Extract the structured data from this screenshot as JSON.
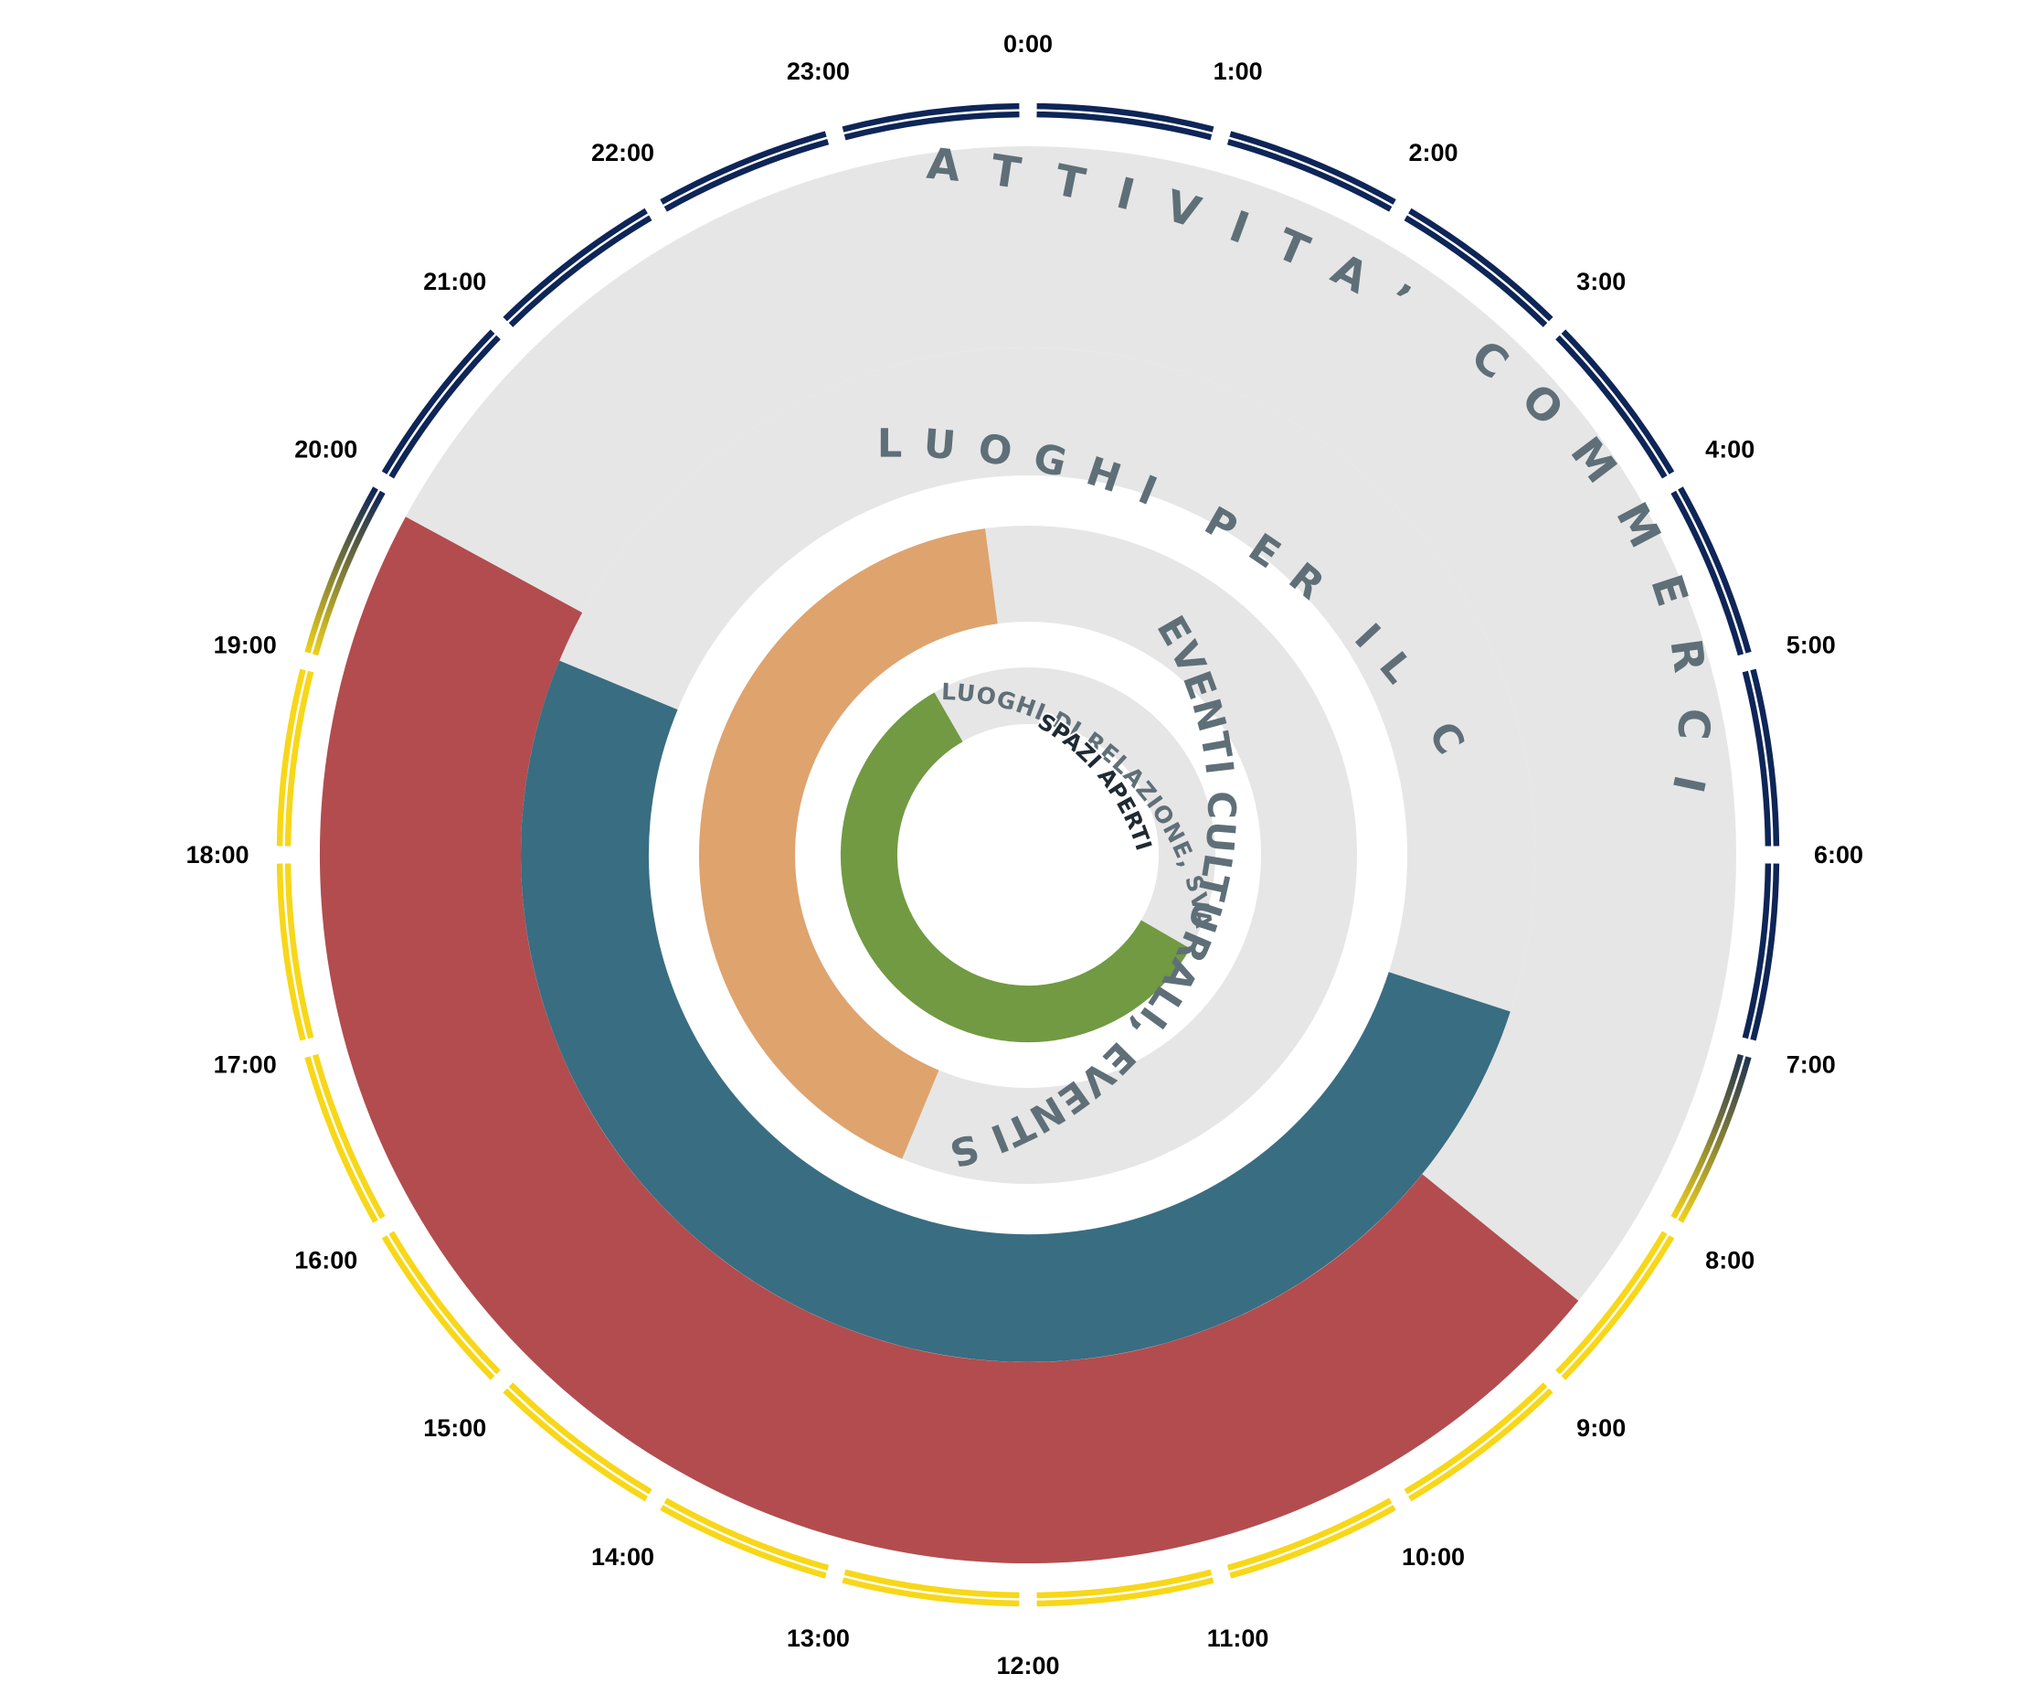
{
  "chart_data": {
    "type": "radial-bar",
    "title": "",
    "clock": {
      "labels": [
        "0:00",
        "1:00",
        "2:00",
        "3:00",
        "4:00",
        "5:00",
        "6:00",
        "7:00",
        "8:00",
        "9:00",
        "10:00",
        "11:00",
        "12:00",
        "13:00",
        "14:00",
        "15:00",
        "16:00",
        "17:00",
        "18:00",
        "19:00",
        "20:00",
        "21:00",
        "22:00",
        "23:00"
      ],
      "night_color": "#0e2557",
      "day_color": "#f7d718",
      "day_period": {
        "start_hour": 7.5,
        "end_hour": 19.5
      }
    },
    "rings": [
      {
        "name": "ATTIVITA’ COMMERCIALI",
        "start_hour": 8.6,
        "end_hour": 19.9,
        "color": "#b34c4e",
        "track_color": "#e6e6e6"
      },
      {
        "name": "LUOGHI PER IL CULTO",
        "start_hour": 7.2,
        "end_hour": 19.5,
        "color": "#396d82",
        "track_color": "#e6e6e6"
      },
      {
        "name": "EVENTI CULTURALI, EVENTI SPORTIVI",
        "start_hour": 13.5,
        "end_hour": 23.5,
        "color": "#dfa36d",
        "track_color": "#e6e6e6"
      },
      {
        "name": "LUOGHI DI RELAZIONE, SVAGO,",
        "start_hour": 8.0,
        "end_hour": 22.0,
        "color": "#719a42",
        "track_color": "#e6e6e6"
      },
      {
        "name": "SPAZI APERTI",
        "start_hour": 0,
        "end_hour": 0,
        "color": "#719a42",
        "track_color": "#ffffff"
      }
    ]
  }
}
